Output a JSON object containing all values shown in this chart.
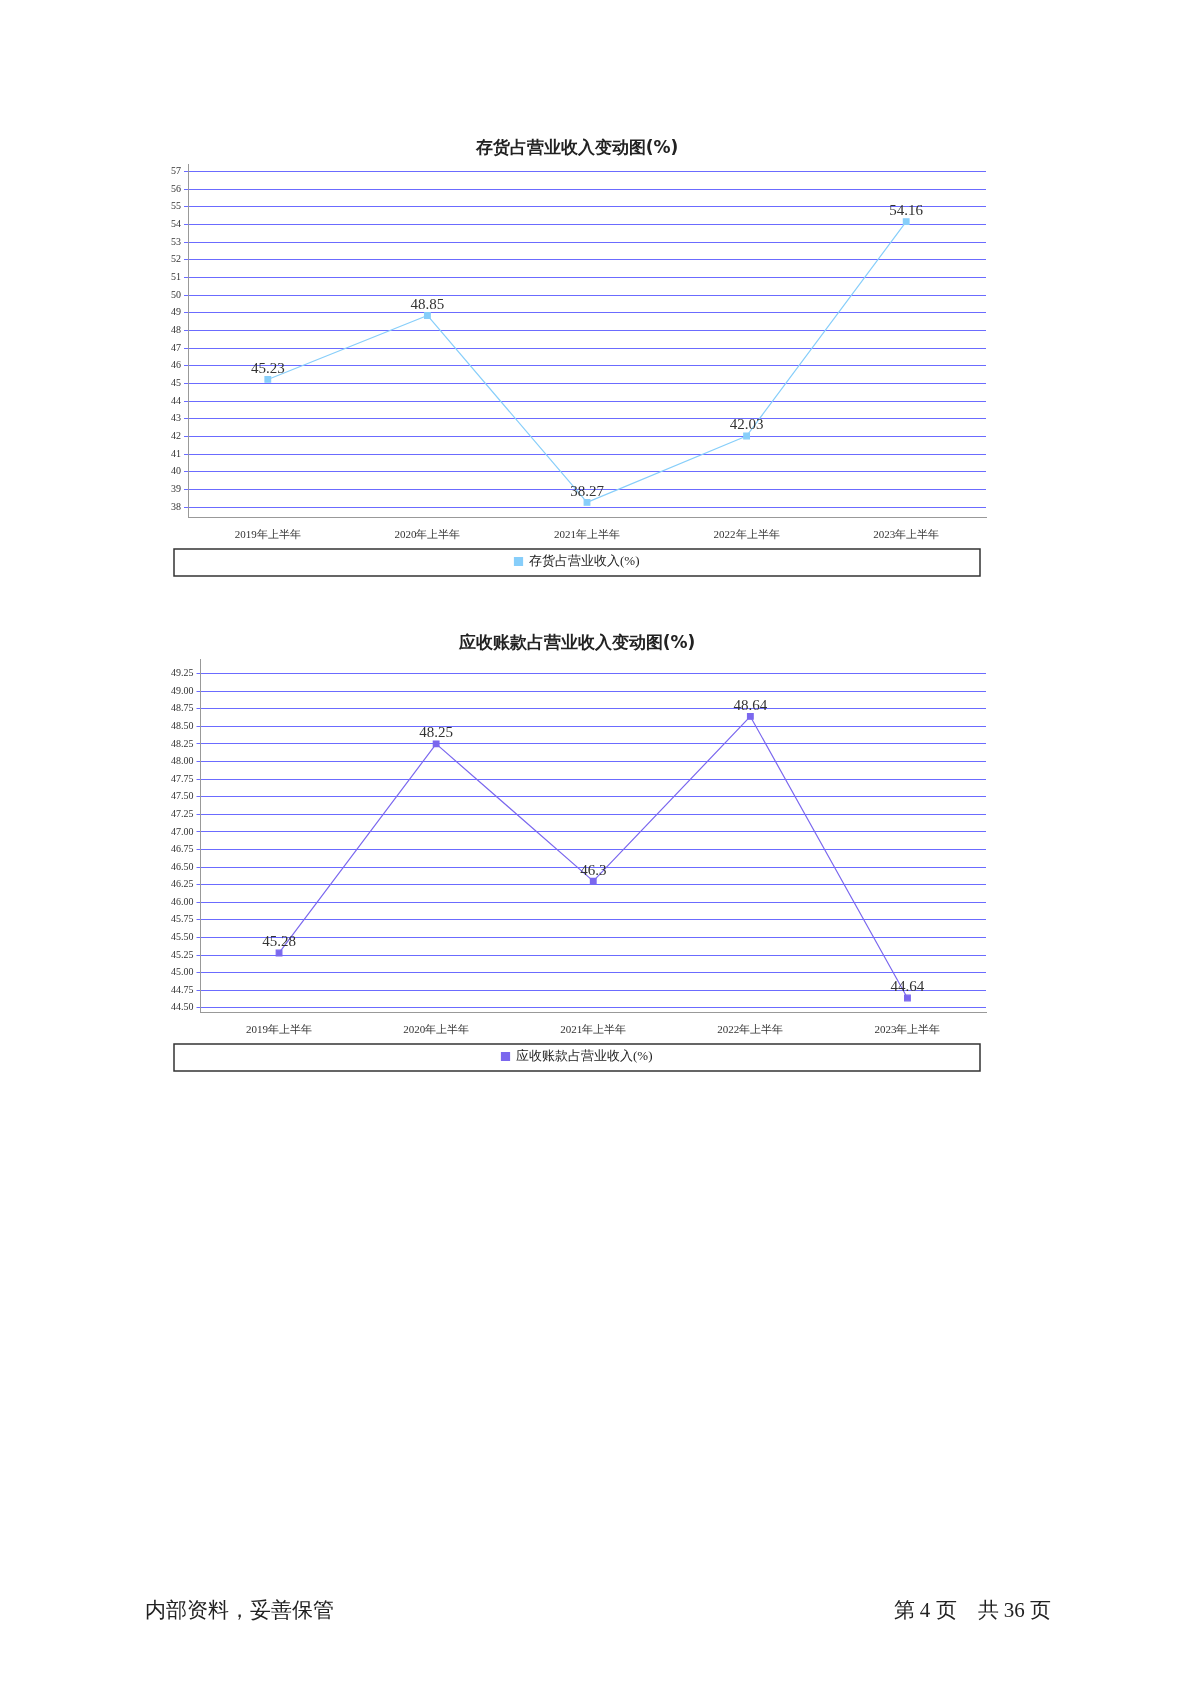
{
  "chart_data": [
    {
      "type": "line",
      "title": "存货占营业收入变动图(%)",
      "categories": [
        "2019年上半年",
        "2020年上半年",
        "2021年上半年",
        "2022年上半年",
        "2023年上半年"
      ],
      "series": [
        {
          "name": "存货占营业收入(%)",
          "color": "#87cefa",
          "values": [
            45.23,
            48.85,
            38.27,
            42.03,
            54.16
          ]
        }
      ],
      "ylim": [
        37.4,
        57.4
      ],
      "yticks": [
        38,
        39,
        40,
        41,
        42,
        43,
        44,
        45,
        46,
        47,
        48,
        49,
        50,
        51,
        52,
        53,
        54,
        55,
        56,
        57
      ],
      "grid": "y",
      "legend": "bottom",
      "marker": "square",
      "line_style": "solid",
      "data_labels": true
    },
    {
      "type": "line",
      "title": "应收账款占营业收入变动图(%)",
      "categories": [
        "2019年上半年",
        "2020年上半年",
        "2021年上半年",
        "2022年上半年",
        "2023年上半年"
      ],
      "series": [
        {
          "name": "应收账款占营业收入(%)",
          "color": "#7b68ee",
          "values": [
            45.28,
            48.25,
            46.3,
            48.64,
            44.64
          ]
        }
      ],
      "ylim": [
        44.43,
        49.45
      ],
      "yticks": [
        {
          "value": 44.5,
          "label": "44.50"
        },
        {
          "value": 44.75,
          "label": "44.75"
        },
        {
          "value": 45,
          "label": "45.00"
        },
        {
          "value": 45.25,
          "label": "45.25"
        },
        {
          "value": 45.5,
          "label": "45.50"
        },
        {
          "value": 45.75,
          "label": "45.75"
        },
        {
          "value": 46,
          "label": "46.00"
        },
        {
          "value": 46.25,
          "label": "46.25"
        },
        {
          "value": 46.5,
          "label": "46.50"
        },
        {
          "value": 46.75,
          "label": "46.75"
        },
        {
          "value": 47,
          "label": "47.00"
        },
        {
          "value": 47.25,
          "label": "47.25"
        },
        {
          "value": 47.5,
          "label": "47.50"
        },
        {
          "value": 47.75,
          "label": "47.75"
        },
        {
          "value": 48,
          "label": "48.00"
        },
        {
          "value": 48.25,
          "label": "48.25"
        },
        {
          "value": 48.5,
          "label": "48.50"
        },
        {
          "value": 48.75,
          "label": "48.75"
        },
        {
          "value": 49,
          "label": "49.00"
        },
        {
          "value": 49.25,
          "label": "49.25"
        }
      ],
      "grid": "y",
      "legend": "bottom",
      "marker": "square",
      "line_style": "solid",
      "data_labels": true,
      "annotations": [
        "内部资料，妥善保管",
        "第 4 页　共 36 页"
      ]
    }
  ]
}
